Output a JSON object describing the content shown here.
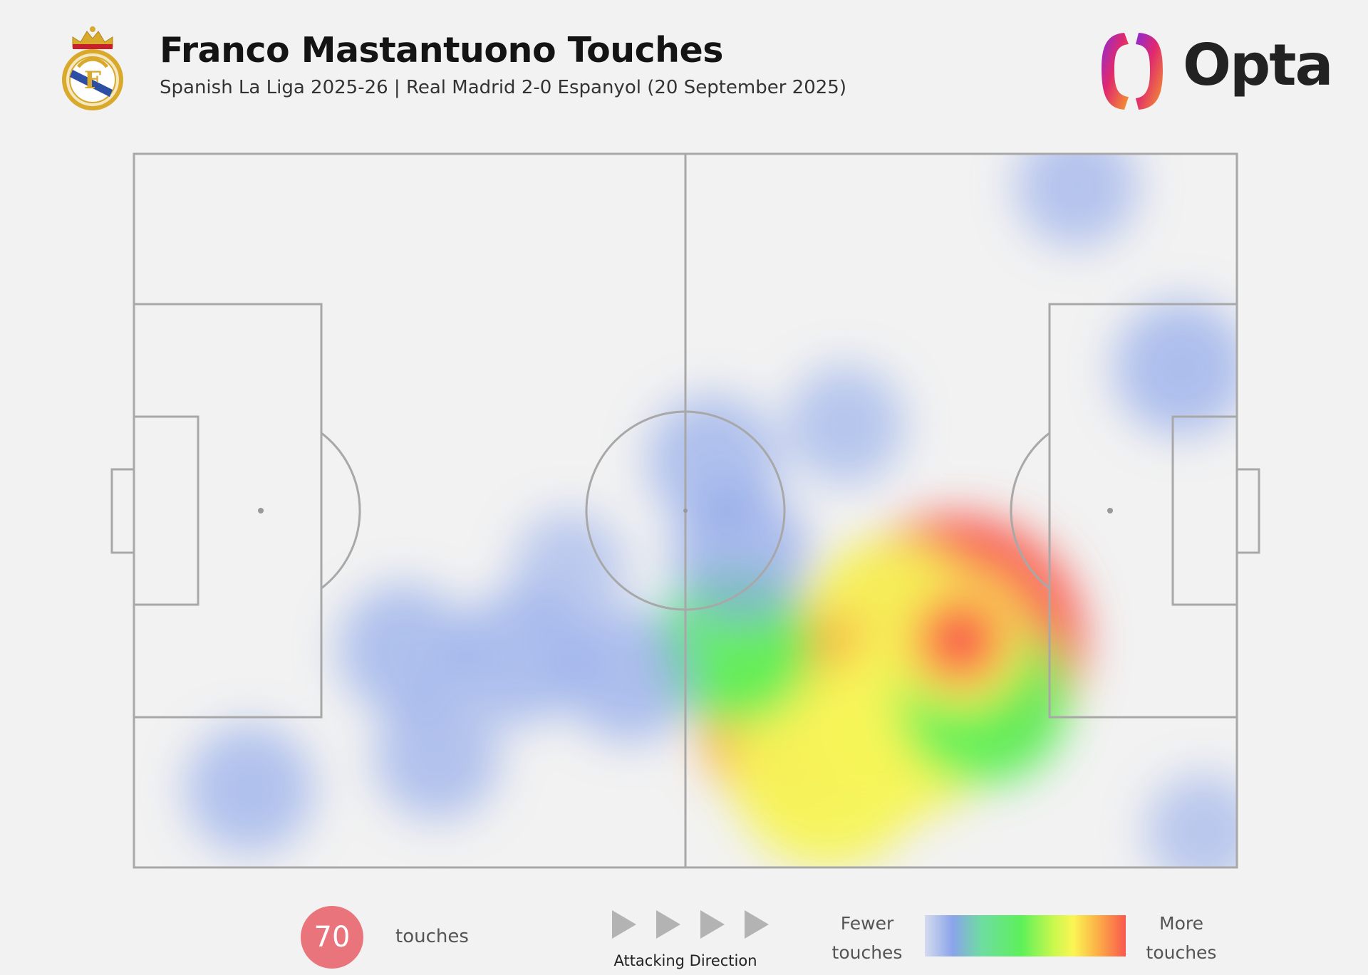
{
  "header": {
    "title": "Franco Mastantuono Touches",
    "subtitle": "Spanish La Liga 2025-26 | Real Madrid 2-0 Espanyol (20 September 2025)",
    "brand": "Opta",
    "crest_icon": "real-madrid-crest-icon",
    "brand_icon": "opta-logo-icon"
  },
  "chart_data": {
    "type": "heatmap",
    "title": "Franco Mastantuono Touches",
    "subtitle": "Spanish La Liga 2025-26 | Real Madrid 2-0 Espanyol (20 September 2025)",
    "x_range": [
      0,
      100
    ],
    "y_range": [
      0,
      100
    ],
    "attacking_direction": "left-to-right",
    "total_touches": 70,
    "hotspots": [
      {
        "x": 74.5,
        "y": 31.5,
        "intensity": 1.0
      },
      {
        "x": 68.5,
        "y": 33.0,
        "intensity": 0.55
      },
      {
        "x": 60.5,
        "y": 21.5,
        "intensity": 0.7
      },
      {
        "x": 63.0,
        "y": 13.5,
        "intensity": 0.6
      },
      {
        "x": 70.0,
        "y": 20.0,
        "intensity": 0.55
      },
      {
        "x": 77.0,
        "y": 23.5,
        "intensity": 0.45
      },
      {
        "x": 54.5,
        "y": 31.0,
        "intensity": 0.35
      },
      {
        "x": 55.0,
        "y": 43.5,
        "intensity": 0.25
      },
      {
        "x": 52.5,
        "y": 57.0,
        "intensity": 0.2
      },
      {
        "x": 64.5,
        "y": 62.0,
        "intensity": 0.12
      },
      {
        "x": 95.0,
        "y": 70.0,
        "intensity": 0.22
      },
      {
        "x": 85.5,
        "y": 95.5,
        "intensity": 0.14
      },
      {
        "x": 45.0,
        "y": 27.0,
        "intensity": 0.22
      },
      {
        "x": 35.0,
        "y": 29.5,
        "intensity": 0.22
      },
      {
        "x": 24.5,
        "y": 30.5,
        "intensity": 0.2
      },
      {
        "x": 27.5,
        "y": 15.5,
        "intensity": 0.16
      },
      {
        "x": 10.5,
        "y": 11.0,
        "intensity": 0.18
      },
      {
        "x": 39.5,
        "y": 42.0,
        "intensity": 0.08
      },
      {
        "x": 97.0,
        "y": 5.0,
        "intensity": 0.1
      }
    ],
    "legend": {
      "low": "Fewer\ntouches",
      "high": "More\ntouches"
    }
  },
  "footer": {
    "touches_count": "70",
    "touches_label": "touches",
    "direction_label": "Attacking Direction",
    "legend_low_label": "Fewer\ntouches",
    "legend_high_label": "More\ntouches",
    "arrow_icon": "play-arrow-icon"
  },
  "colors": {
    "background": "#f2f2f2",
    "pitch_lines": "#a8a8a8",
    "touch_badge": "#e9747b",
    "heat_low": "#8aa4ea",
    "heat_mid": "#5df05a",
    "heat_high": "#f9584e"
  }
}
